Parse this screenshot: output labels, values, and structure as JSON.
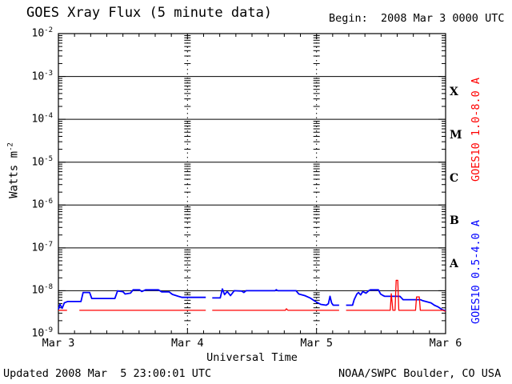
{
  "chart_data": {
    "type": "line",
    "title": "GOES Xray Flux (5 minute data)",
    "begin_label": "Begin:  2008 Mar 3 0000 UTC",
    "xlabel": "Universal Time",
    "ylabel_text": "Watts m",
    "ylabel_sup": "-2",
    "footer_left": "Updated 2008 Mar  5 23:00:01 UTC",
    "footer_right": "NOAA/SWPC Boulder, CO USA",
    "x_unit": "hours since 2008 Mar 3 0000 UTC",
    "xlim": [
      0,
      72
    ],
    "y_decade_exponents": [
      -2,
      -3,
      -4,
      -5,
      -6,
      -7,
      -8,
      -9
    ],
    "x_ticks": [
      {
        "hour": 0,
        "label": "Mar 3"
      },
      {
        "hour": 24,
        "label": "Mar 4"
      },
      {
        "hour": 48,
        "label": "Mar 5"
      },
      {
        "hour": 72,
        "label": "Mar 6"
      }
    ],
    "x_minor_tick_interval_hours": 3,
    "grid": {
      "horizontal_solid_decades": [
        -3,
        -4,
        -5,
        -6,
        -7,
        -8
      ],
      "vertical_dotted_hours": [
        24,
        48
      ],
      "legend_position": "right-margin"
    },
    "flare_class_bands": [
      {
        "label": "X",
        "exp_low": -4,
        "exp_high": -3
      },
      {
        "label": "M",
        "exp_low": -5,
        "exp_high": -4
      },
      {
        "label": "C",
        "exp_low": -6,
        "exp_high": -5
      },
      {
        "label": "B",
        "exp_low": -7,
        "exp_high": -6
      },
      {
        "label": "A",
        "exp_low": -8,
        "exp_high": -7
      }
    ],
    "series": [
      {
        "name": "GOES10 0.5-4.0 A",
        "color": "#0000ff",
        "points": [
          [
            0,
            3.7e-09
          ],
          [
            0.3,
            4.8e-09
          ],
          [
            0.7,
            3.9e-09
          ],
          [
            1.1,
            5.2e-09
          ],
          [
            1.7,
            5.6e-09
          ],
          [
            4.2,
            5.6e-09
          ],
          [
            4.6,
            9.1e-09
          ],
          [
            5.8,
            9.1e-09
          ],
          [
            6.2,
            6.6e-09
          ],
          [
            10.5,
            6.6e-09
          ],
          [
            11.0,
            9.9e-09
          ],
          [
            12.0,
            9.5e-09
          ],
          [
            12.4,
            8.4e-09
          ],
          [
            13.4,
            8.8e-09
          ],
          [
            13.9,
            1.05e-08
          ],
          [
            15.1,
            1.05e-08
          ],
          [
            15.5,
            9.6e-09
          ],
          [
            16.2,
            1.05e-08
          ],
          [
            18.6,
            1.05e-08
          ],
          [
            19.2,
            9.4e-09
          ],
          [
            20.6,
            9.4e-09
          ],
          [
            21.2,
            8.2e-09
          ],
          [
            22.3,
            7.4e-09
          ],
          [
            23.0,
            7e-09
          ],
          [
            27.4,
            7e-09
          ],
          null,
          [
            28.6,
            6.8e-09
          ],
          [
            30.1,
            6.8e-09
          ],
          [
            30.5,
            1.1e-08
          ],
          [
            30.9,
            8.1e-09
          ],
          [
            31.4,
            9.6e-09
          ],
          [
            32.0,
            7.7e-09
          ],
          [
            32.7,
            1e-08
          ],
          [
            34.1,
            9.8e-09
          ],
          [
            34.5,
            9.1e-09
          ],
          [
            34.9,
            1e-08
          ],
          [
            40.3,
            1e-08
          ],
          [
            40.5,
            1.06e-08
          ],
          [
            40.8,
            1e-08
          ],
          [
            44.2,
            1e-08
          ],
          [
            44.7,
            8.4e-09
          ],
          [
            45.8,
            7.7e-09
          ],
          [
            46.8,
            6.8e-09
          ],
          [
            47.7,
            5.7e-09
          ],
          [
            48.8,
            4.8e-09
          ],
          [
            49.8,
            4.6e-09
          ],
          [
            50.2,
            5e-09
          ],
          [
            50.5,
            7.4e-09
          ],
          [
            50.8,
            5.2e-09
          ],
          [
            51.1,
            4.6e-09
          ],
          [
            52.2,
            4.6e-09
          ],
          null,
          [
            53.5,
            4.6e-09
          ],
          [
            54.7,
            4.6e-09
          ],
          [
            55.0,
            6.2e-09
          ],
          [
            55.5,
            8.4e-09
          ],
          [
            55.8,
            9.1e-09
          ],
          [
            56.2,
            8e-09
          ],
          [
            56.6,
            9.6e-09
          ],
          [
            57.2,
            8.8e-09
          ],
          [
            57.7,
            1e-08
          ],
          [
            58.0,
            1.05e-08
          ],
          [
            59.5,
            1.05e-08
          ],
          [
            59.9,
            8.4e-09
          ],
          [
            60.4,
            7.7e-09
          ],
          [
            60.7,
            7.4e-09
          ],
          [
            63.5,
            7.4e-09
          ],
          [
            64.1,
            6.2e-09
          ],
          [
            67.3,
            6.2e-09
          ],
          [
            67.7,
            5.9e-09
          ],
          [
            69.3,
            5.2e-09
          ],
          [
            69.9,
            4.6e-09
          ],
          [
            70.6,
            4.2e-09
          ],
          [
            71.4,
            3.6e-09
          ],
          [
            72,
            3.4e-09
          ]
        ]
      },
      {
        "name": "GOES10 1.0-8.0 A",
        "color": "#ff0000",
        "points": [
          [
            0,
            3.5e-09
          ],
          [
            1.6,
            3.5e-09
          ],
          null,
          [
            3.9,
            3.5e-09
          ],
          [
            27.4,
            3.5e-09
          ],
          null,
          [
            28.6,
            3.5e-09
          ],
          [
            42.2,
            3.5e-09
          ],
          [
            42.4,
            3.8e-09
          ],
          [
            42.7,
            3.5e-09
          ],
          [
            52.2,
            3.5e-09
          ],
          null,
          [
            53.5,
            3.5e-09
          ],
          [
            61.7,
            3.5e-09
          ],
          [
            61.9,
            8.5e-09
          ],
          [
            62.2,
            3.5e-09
          ],
          [
            62.6,
            3.5e-09
          ],
          [
            62.8,
            1.75e-08
          ],
          [
            63.1,
            1.75e-08
          ],
          [
            63.3,
            3.5e-09
          ],
          [
            66.4,
            3.5e-09
          ],
          [
            66.6,
            7.2e-09
          ],
          [
            67.1,
            7.2e-09
          ],
          [
            67.3,
            3.5e-09
          ],
          [
            71.5,
            3.5e-09
          ],
          [
            72,
            3.3e-09
          ]
        ]
      }
    ],
    "colors": {
      "frame": "#000000",
      "background": "#ffffff",
      "short_channel": "#0000ff",
      "long_channel": "#ff0000"
    }
  }
}
